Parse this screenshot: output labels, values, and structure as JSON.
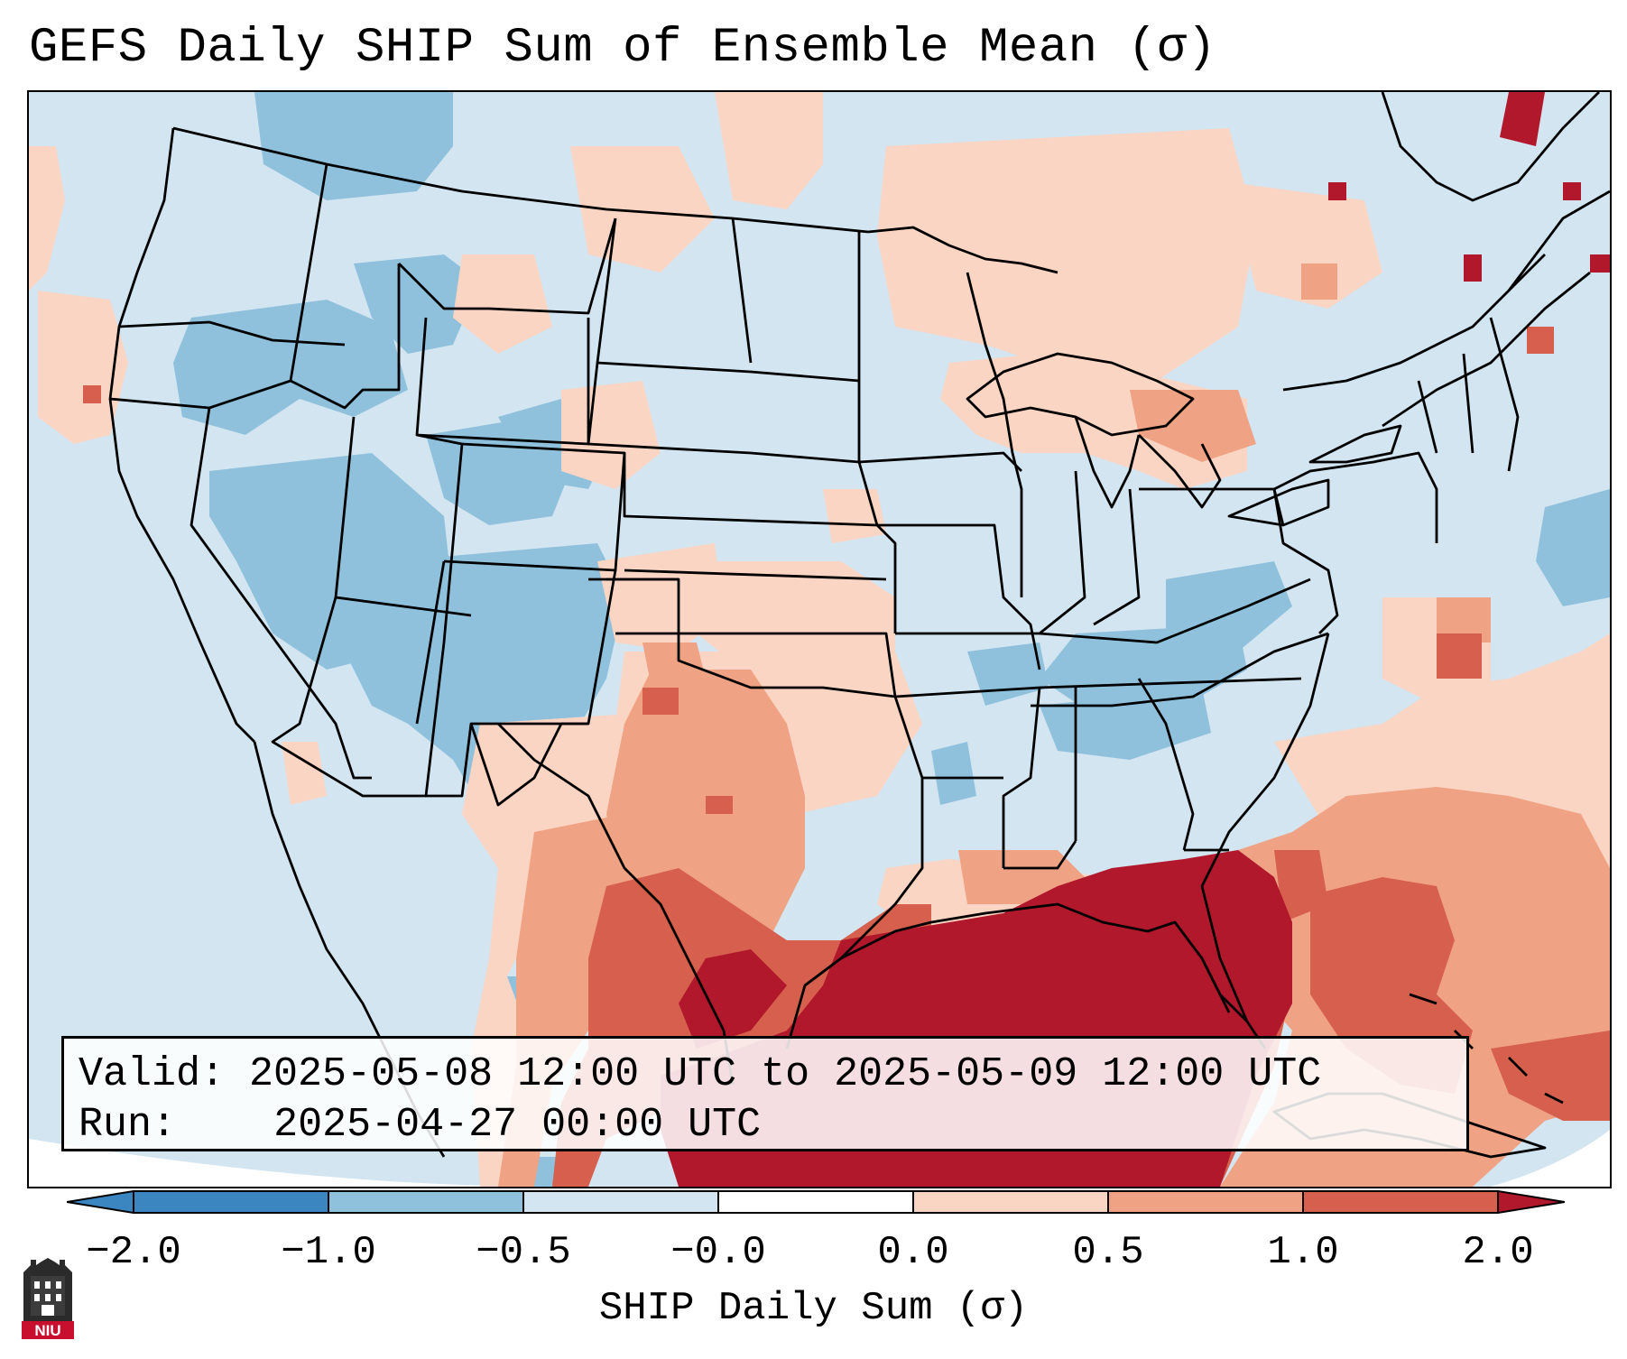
{
  "title": "GEFS Daily SHIP Sum of Ensemble Mean (σ)",
  "info": {
    "valid_label": "Valid:",
    "valid_value": "2025-05-08 12:00 UTC to 2025-05-09 12:00 UTC",
    "run_label": "Run:",
    "run_value": "2025-04-27 00:00 UTC"
  },
  "colorbar": {
    "label": "SHIP Daily Sum (σ)",
    "ticks": [
      "−2.0",
      "−1.0",
      "−0.5",
      "−0.0",
      "0.0",
      "0.5",
      "1.0",
      "2.0"
    ],
    "colors": [
      "#3b86c0",
      "#8fc1dc",
      "#d2e5f1",
      "#ffffff",
      "#fbd5c3",
      "#f0a284",
      "#d6604d",
      "#b2182b"
    ],
    "extend": "both"
  },
  "map_colors": {
    "background": "#d2e5f1",
    "blue_medium": "#8fc1dc",
    "peach_light": "#fbd5c3",
    "salmon": "#f0a284",
    "red_medium": "#d6604d",
    "red_dark": "#b2182b",
    "outside_domain": "#ffffff"
  },
  "logo": {
    "text": "NIU",
    "icon": "niu-building-icon"
  }
}
